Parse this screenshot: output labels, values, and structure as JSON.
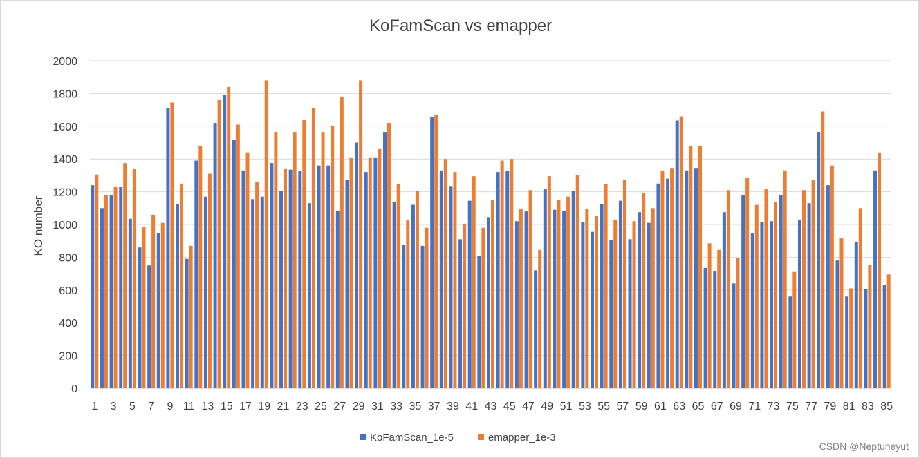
{
  "chart_data": {
    "type": "bar",
    "title": "KoFamScan vs emapper",
    "xlabel": "",
    "ylabel": "KO number",
    "ylim": [
      0,
      2000
    ],
    "yticks": [
      0,
      200,
      400,
      600,
      800,
      1000,
      1200,
      1400,
      1600,
      1800,
      2000
    ],
    "grid": true,
    "legend_position": "bottom",
    "categories": [
      "1",
      "2",
      "3",
      "4",
      "5",
      "6",
      "7",
      "8",
      "9",
      "10",
      "11",
      "12",
      "13",
      "14",
      "15",
      "16",
      "17",
      "18",
      "19",
      "20",
      "21",
      "22",
      "23",
      "24",
      "25",
      "26",
      "27",
      "28",
      "29",
      "30",
      "31",
      "32",
      "33",
      "34",
      "35",
      "36",
      "37",
      "38",
      "39",
      "40",
      "41",
      "42",
      "43",
      "44",
      "45",
      "46",
      "47",
      "48",
      "49",
      "50",
      "51",
      "52",
      "53",
      "54",
      "55",
      "56",
      "57",
      "58",
      "59",
      "60",
      "61",
      "62",
      "63",
      "64",
      "65",
      "66",
      "67",
      "68",
      "69",
      "70",
      "71",
      "72",
      "73",
      "74",
      "75",
      "76",
      "77",
      "78",
      "79",
      "80",
      "81",
      "82",
      "83",
      "84",
      "85"
    ],
    "series": [
      {
        "name": "KoFamScan_1e-5",
        "color": "#4472c4",
        "values": [
          1240,
          1100,
          1180,
          1230,
          1035,
          860,
          750,
          945,
          1710,
          1125,
          790,
          1390,
          1170,
          1620,
          1790,
          1515,
          1330,
          1155,
          1170,
          1375,
          1205,
          1335,
          1325,
          1130,
          1360,
          1360,
          1085,
          1270,
          1500,
          1320,
          1410,
          1565,
          1140,
          875,
          1120,
          870,
          1655,
          1330,
          1235,
          910,
          1145,
          810,
          1045,
          1320,
          1325,
          1020,
          1080,
          720,
          1215,
          1090,
          1085,
          1205,
          1015,
          955,
          1125,
          905,
          1145,
          910,
          1075,
          1010,
          1250,
          1280,
          1635,
          1330,
          1345,
          735,
          715,
          1075,
          640,
          1180,
          945,
          1015,
          1020,
          1180,
          560,
          1030,
          1130,
          1565,
          1240,
          780,
          560,
          895,
          605,
          1330,
          630
        ]
      },
      {
        "name": "emapper_1e-3",
        "color": "#ed7d31",
        "values": [
          1305,
          1180,
          1230,
          1375,
          1340,
          985,
          1060,
          1010,
          1745,
          1250,
          870,
          1480,
          1310,
          1760,
          1840,
          1610,
          1440,
          1260,
          1880,
          1565,
          1340,
          1565,
          1640,
          1710,
          1565,
          1600,
          1780,
          1410,
          1880,
          1410,
          1460,
          1620,
          1245,
          1025,
          1205,
          980,
          1670,
          1400,
          1320,
          1005,
          1295,
          980,
          1150,
          1390,
          1400,
          1095,
          1210,
          845,
          1295,
          1150,
          1170,
          1300,
          1095,
          1055,
          1245,
          1030,
          1270,
          1020,
          1190,
          1100,
          1325,
          1345,
          1660,
          1480,
          1480,
          885,
          845,
          1210,
          795,
          1285,
          1120,
          1215,
          1135,
          1330,
          710,
          1210,
          1270,
          1690,
          1360,
          915,
          610,
          1100,
          755,
          1435,
          695
        ]
      }
    ]
  },
  "watermark": "CSDN @Neptuneyut"
}
